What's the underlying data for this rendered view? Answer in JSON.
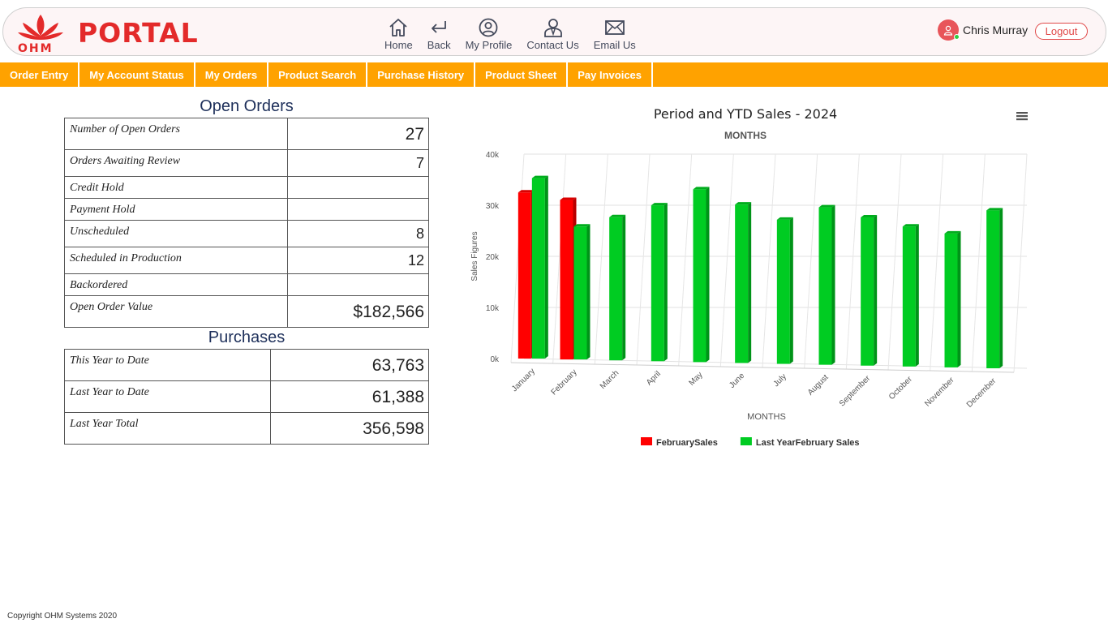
{
  "header": {
    "logo_text": "PORTAL",
    "logo_sub": "OHM",
    "nav": [
      {
        "label": "Home",
        "icon": "home-icon"
      },
      {
        "label": "Back",
        "icon": "back-icon"
      },
      {
        "label": "My Profile",
        "icon": "profile-icon"
      },
      {
        "label": "Contact Us",
        "icon": "contact-icon"
      },
      {
        "label": "Email Us",
        "icon": "email-icon"
      }
    ],
    "user_name": "Chris Murray",
    "logout_label": "Logout"
  },
  "menu": [
    "Order Entry",
    "My Account Status",
    "My Orders",
    "Product Search",
    "Purchase History",
    "Product Sheet",
    "Pay Invoices"
  ],
  "open_orders": {
    "title": "Open Orders",
    "rows": [
      {
        "label": "Number of Open Orders",
        "value": "27"
      },
      {
        "label": "Orders Awaiting Review",
        "value": "7"
      },
      {
        "label": "Credit Hold",
        "value": ""
      },
      {
        "label": "Payment Hold",
        "value": ""
      },
      {
        "label": "Unscheduled",
        "value": "8"
      },
      {
        "label": "Scheduled in Production",
        "value": "12"
      },
      {
        "label": "Backordered",
        "value": ""
      },
      {
        "label": "Open Order Value",
        "value": "$182,566"
      }
    ]
  },
  "purchases": {
    "title": "Purchases",
    "rows": [
      {
        "label": "This Year to Date",
        "value": "63,763"
      },
      {
        "label": "Last Year to Date",
        "value": "61,388"
      },
      {
        "label": "Last Year Total",
        "value": "356,598"
      }
    ]
  },
  "chart_data": {
    "type": "bar",
    "title": "Period and YTD Sales - 2024",
    "subtitle": "MONTHS",
    "xlabel": "MONTHS",
    "ylabel": "Sales Figures",
    "ylim": [
      0,
      40000
    ],
    "yticks": [
      "0k",
      "10k",
      "20k",
      "30k",
      "40k"
    ],
    "grid": true,
    "legend_position": "bottom",
    "categories": [
      "January",
      "February",
      "March",
      "April",
      "May",
      "June",
      "July",
      "August",
      "September",
      "October",
      "November",
      "December"
    ],
    "series": [
      {
        "name": "FebruarySales",
        "color": "#ff0000",
        "values": [
          32500,
          31200,
          null,
          null,
          null,
          null,
          null,
          null,
          null,
          null,
          null,
          null
        ]
      },
      {
        "name": "Last YearFebruary Sales",
        "color": "#00cc22",
        "values": [
          35300,
          26000,
          28000,
          30500,
          33800,
          31000,
          28200,
          30800,
          29000,
          27400,
          26200,
          30900
        ]
      }
    ]
  },
  "footer": "Copyright OHM Systems 2020"
}
